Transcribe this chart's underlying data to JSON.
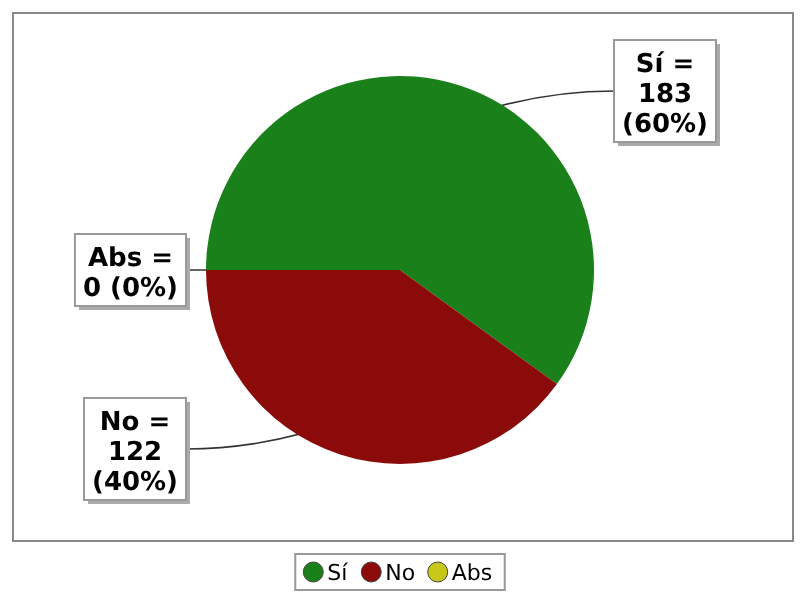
{
  "chart_data": {
    "type": "pie",
    "categories": [
      "Sí",
      "No",
      "Abs"
    ],
    "values": [
      183,
      122,
      0
    ],
    "colors": [
      "#1a801a",
      "#8b0b0b",
      "#c8c81a"
    ],
    "value_labels": [
      "Sí =\n183\n(60%)",
      "No =\n122\n(40%)",
      "Abs =\n0 (0%)"
    ],
    "legend": "bottom"
  }
}
